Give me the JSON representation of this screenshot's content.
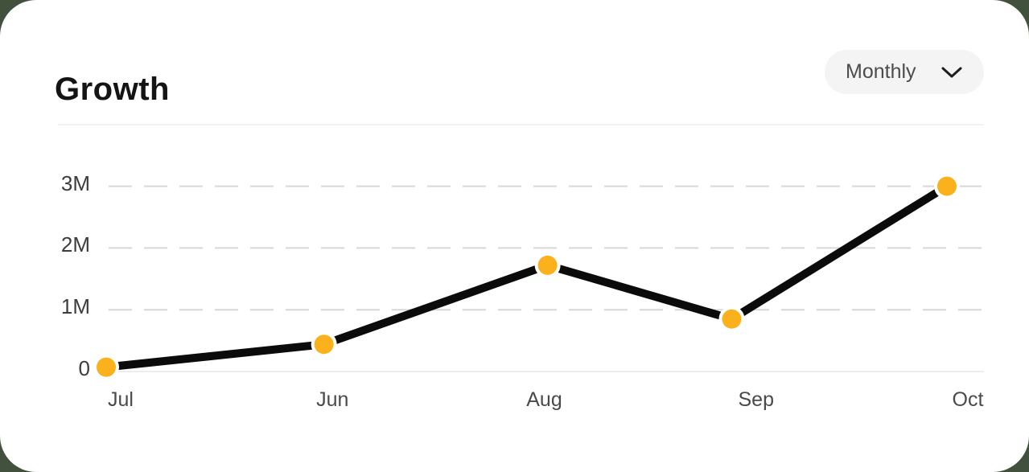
{
  "card": {
    "title": "Growth"
  },
  "filter": {
    "label": "Monthly",
    "icon": "chevron-down-icon"
  },
  "colors": {
    "page_background": "#42513E",
    "card_background": "#FFFFFF",
    "line": "#0B0B0B",
    "dot_fill": "#FBB11B",
    "dot_ring": "#FFFFFF",
    "gridline_dashed": "#D8D8D8",
    "baseline_solid": "#EDEDED",
    "title_text": "#141414",
    "axis_text": "#4A4A4A",
    "pill_background": "#F4F4F4",
    "pill_text": "#4C4C4C"
  },
  "chart_data": {
    "type": "line",
    "title": "Growth",
    "categories": [
      "Jul",
      "Jun",
      "Aug",
      "Sep",
      "Oct"
    ],
    "values": [
      0.07,
      0.44,
      1.72,
      0.85,
      3.0
    ],
    "unit": "millions",
    "y_ticks": [
      {
        "value": 3,
        "label": "3M"
      },
      {
        "value": 2,
        "label": "2M"
      },
      {
        "value": 1,
        "label": "1M"
      },
      {
        "value": 0,
        "label": "0"
      }
    ],
    "ylim": [
      0,
      3
    ],
    "xlabel": "",
    "ylabel": "",
    "legend": "none",
    "grid": "dashed-horizontal",
    "marker": "filled-circle"
  }
}
